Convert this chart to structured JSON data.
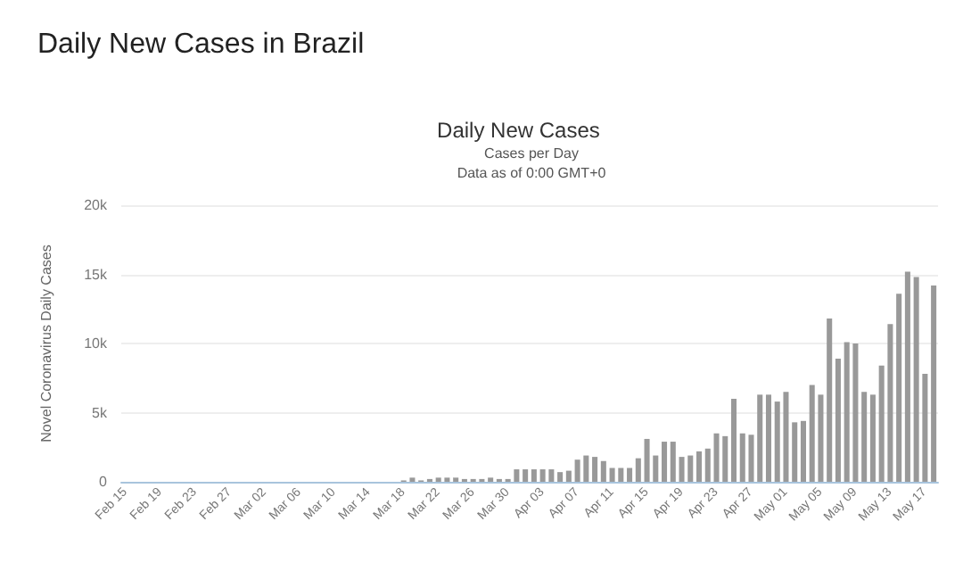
{
  "chart_data": {
    "type": "bar",
    "title": "Daily New Cases in Brazil",
    "subtitle": "Daily New Cases",
    "annotations": [
      "Cases per Day",
      "Data as of 0:00 GMT+0"
    ],
    "ylabel": "Novel Coronavirus Daily Cases",
    "categories": [
      "Feb 15",
      null,
      null,
      null,
      "Feb 19",
      null,
      null,
      null,
      "Feb 23",
      null,
      null,
      null,
      "Feb 27",
      null,
      null,
      null,
      "Mar 02",
      null,
      null,
      null,
      "Mar 06",
      null,
      null,
      null,
      "Mar 10",
      null,
      null,
      null,
      "Mar 14",
      null,
      null,
      null,
      "Mar 18",
      null,
      null,
      null,
      "Mar 22",
      null,
      null,
      null,
      "Mar 26",
      null,
      null,
      null,
      "Mar 30",
      null,
      null,
      null,
      "Apr 03",
      null,
      null,
      null,
      "Apr 07",
      null,
      null,
      null,
      "Apr 11",
      null,
      null,
      null,
      "Apr 15",
      null,
      null,
      null,
      "Apr 19",
      null,
      null,
      null,
      "Apr 23",
      null,
      null,
      null,
      "Apr 27",
      null,
      null,
      null,
      "May 01",
      null,
      null,
      null,
      "May 05",
      null,
      null,
      null,
      "May 09",
      null,
      null,
      null,
      "May 13",
      null,
      null,
      null,
      "May 17",
      null
    ],
    "values": [
      0,
      0,
      0,
      0,
      0,
      0,
      0,
      0,
      0,
      0,
      0,
      0,
      0,
      0,
      0,
      0,
      0,
      0,
      0,
      0,
      0,
      0,
      0,
      0,
      0,
      0,
      0,
      0,
      0,
      0,
      0,
      0,
      100,
      300,
      100,
      200,
      300,
      300,
      300,
      200,
      200,
      200,
      300,
      200,
      200,
      900,
      900,
      900,
      900,
      900,
      700,
      800,
      1600,
      1900,
      1800,
      1500,
      1000,
      1000,
      1000,
      1700,
      3100,
      1900,
      2900,
      2900,
      1800,
      1900,
      2200,
      2400,
      3500,
      3300,
      6000,
      3500,
      3400,
      6300,
      6300,
      5800,
      6500,
      4300,
      4400,
      7000,
      6300,
      11800,
      8900,
      10100,
      10000,
      6500,
      6300,
      8400,
      11400,
      13600,
      15200,
      14800,
      7800,
      14200
    ],
    "color": "#999999",
    "ylim": [
      0,
      20000
    ],
    "yticks": [
      {
        "value": 0,
        "label": "0"
      },
      {
        "value": 5000,
        "label": "5k"
      },
      {
        "value": 10000,
        "label": "10k"
      },
      {
        "value": 15000,
        "label": "15k"
      },
      {
        "value": 20000,
        "label": "20k"
      }
    ],
    "grid": "y"
  }
}
